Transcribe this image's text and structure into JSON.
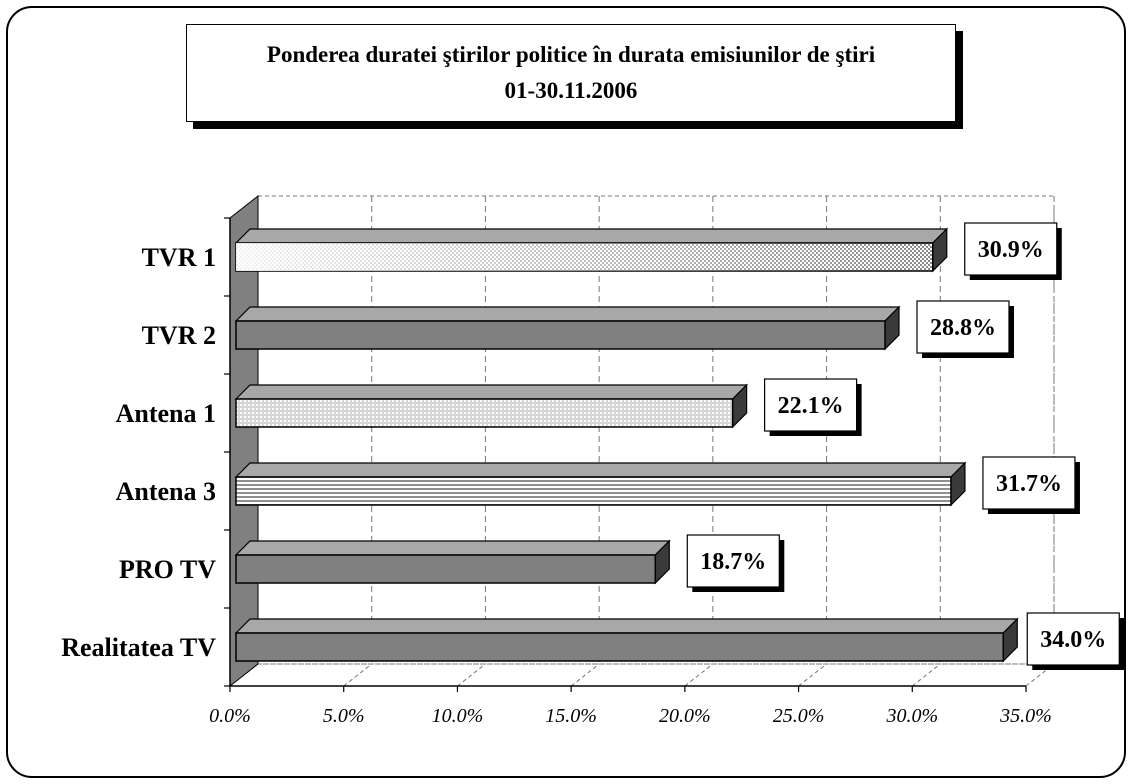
{
  "chart_data": {
    "type": "bar",
    "orientation": "horizontal",
    "title": "Ponderea duratei ştirilor politice în durata emisiunilor de ştiri",
    "subtitle": "01-30.11.2006",
    "categories": [
      "TVR 1",
      "TVR 2",
      "Antena 1",
      "Antena 3",
      "PRO TV",
      "Realitatea TV"
    ],
    "values": [
      30.9,
      28.8,
      22.1,
      31.7,
      18.7,
      34.0
    ],
    "value_labels": [
      "30.9%",
      "28.8%",
      "22.1%",
      "31.7%",
      "18.7%",
      "34.0%"
    ],
    "x_ticks": [
      "0.0%",
      "5.0%",
      "10.0%",
      "15.0%",
      "20.0%",
      "25.0%",
      "30.0%",
      "35.0%"
    ],
    "xlim": [
      0,
      35
    ],
    "grid": true,
    "style": "3d",
    "legend": "none",
    "colors": {
      "bar_fill": "#808080",
      "bar_top": "#a8a8a8",
      "bar_end": "#3a3a3a",
      "wall": "#808080",
      "grid": "#777777",
      "light_bar": "#d4d4d4"
    }
  }
}
